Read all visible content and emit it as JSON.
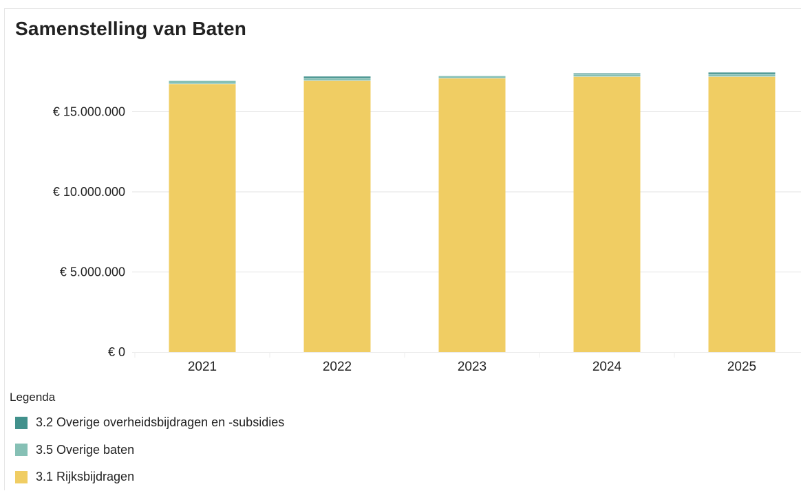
{
  "chart_data": {
    "type": "bar",
    "stacked": true,
    "title": "Samenstelling van Baten",
    "categories": [
      "2021",
      "2022",
      "2023",
      "2024",
      "2025"
    ],
    "y_tick_labels": [
      "€ 0",
      "€ 5.000.000",
      "€ 10.000.000",
      "€ 15.000.000"
    ],
    "y_ticks": [
      0,
      5000000,
      10000000,
      15000000
    ],
    "ylim": [
      0,
      20000000
    ],
    "grid": true,
    "legend_title": "Legenda",
    "legend_position": "bottom-left",
    "series": [
      {
        "name": "3.1 Rijksbijdragen",
        "color": "#f0cd63",
        "values": [
          16750000,
          16950000,
          17100000,
          17200000,
          17200000
        ]
      },
      {
        "name": "3.5 Overige baten",
        "color": "#86c0b5",
        "values": [
          200000,
          150000,
          150000,
          150000,
          150000
        ]
      },
      {
        "name": "3.2 Overige overheidsbijdragen en -subsidies",
        "color": "#42918c",
        "values": [
          0,
          100000,
          0,
          50000,
          100000
        ]
      }
    ],
    "legend_order": [
      2,
      1,
      0
    ]
  }
}
